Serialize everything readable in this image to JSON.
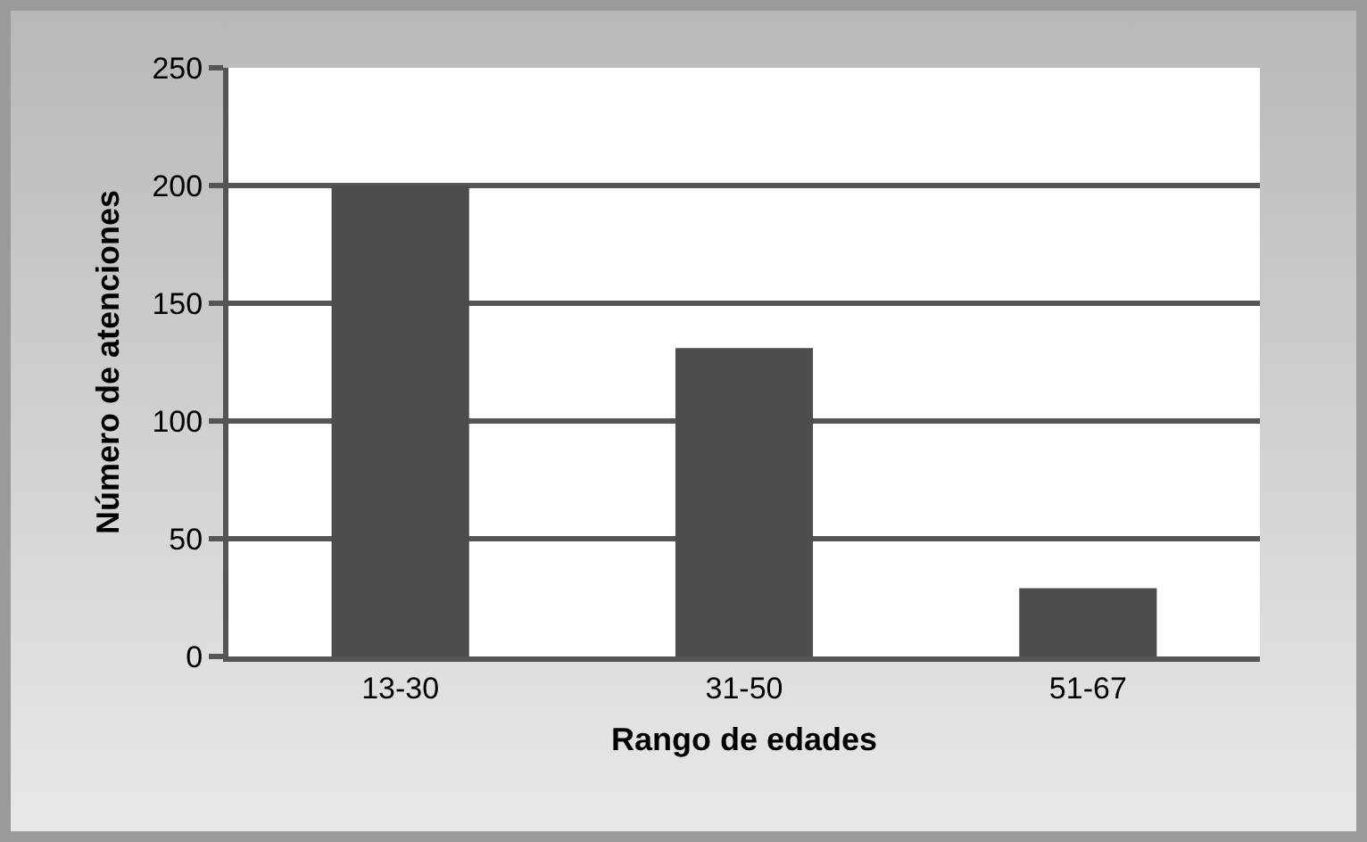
{
  "chart_data": {
    "type": "bar",
    "categories": [
      "13-30",
      "31-50",
      "51-67"
    ],
    "values": [
      200,
      131,
      29
    ],
    "color": "#4d4d4d",
    "xlabel": "Rango de edades",
    "ylabel": "Número de atenciones",
    "ylim": [
      0,
      250
    ],
    "yticks": [
      0,
      50,
      100,
      150,
      200,
      250
    ],
    "grid": "y"
  }
}
